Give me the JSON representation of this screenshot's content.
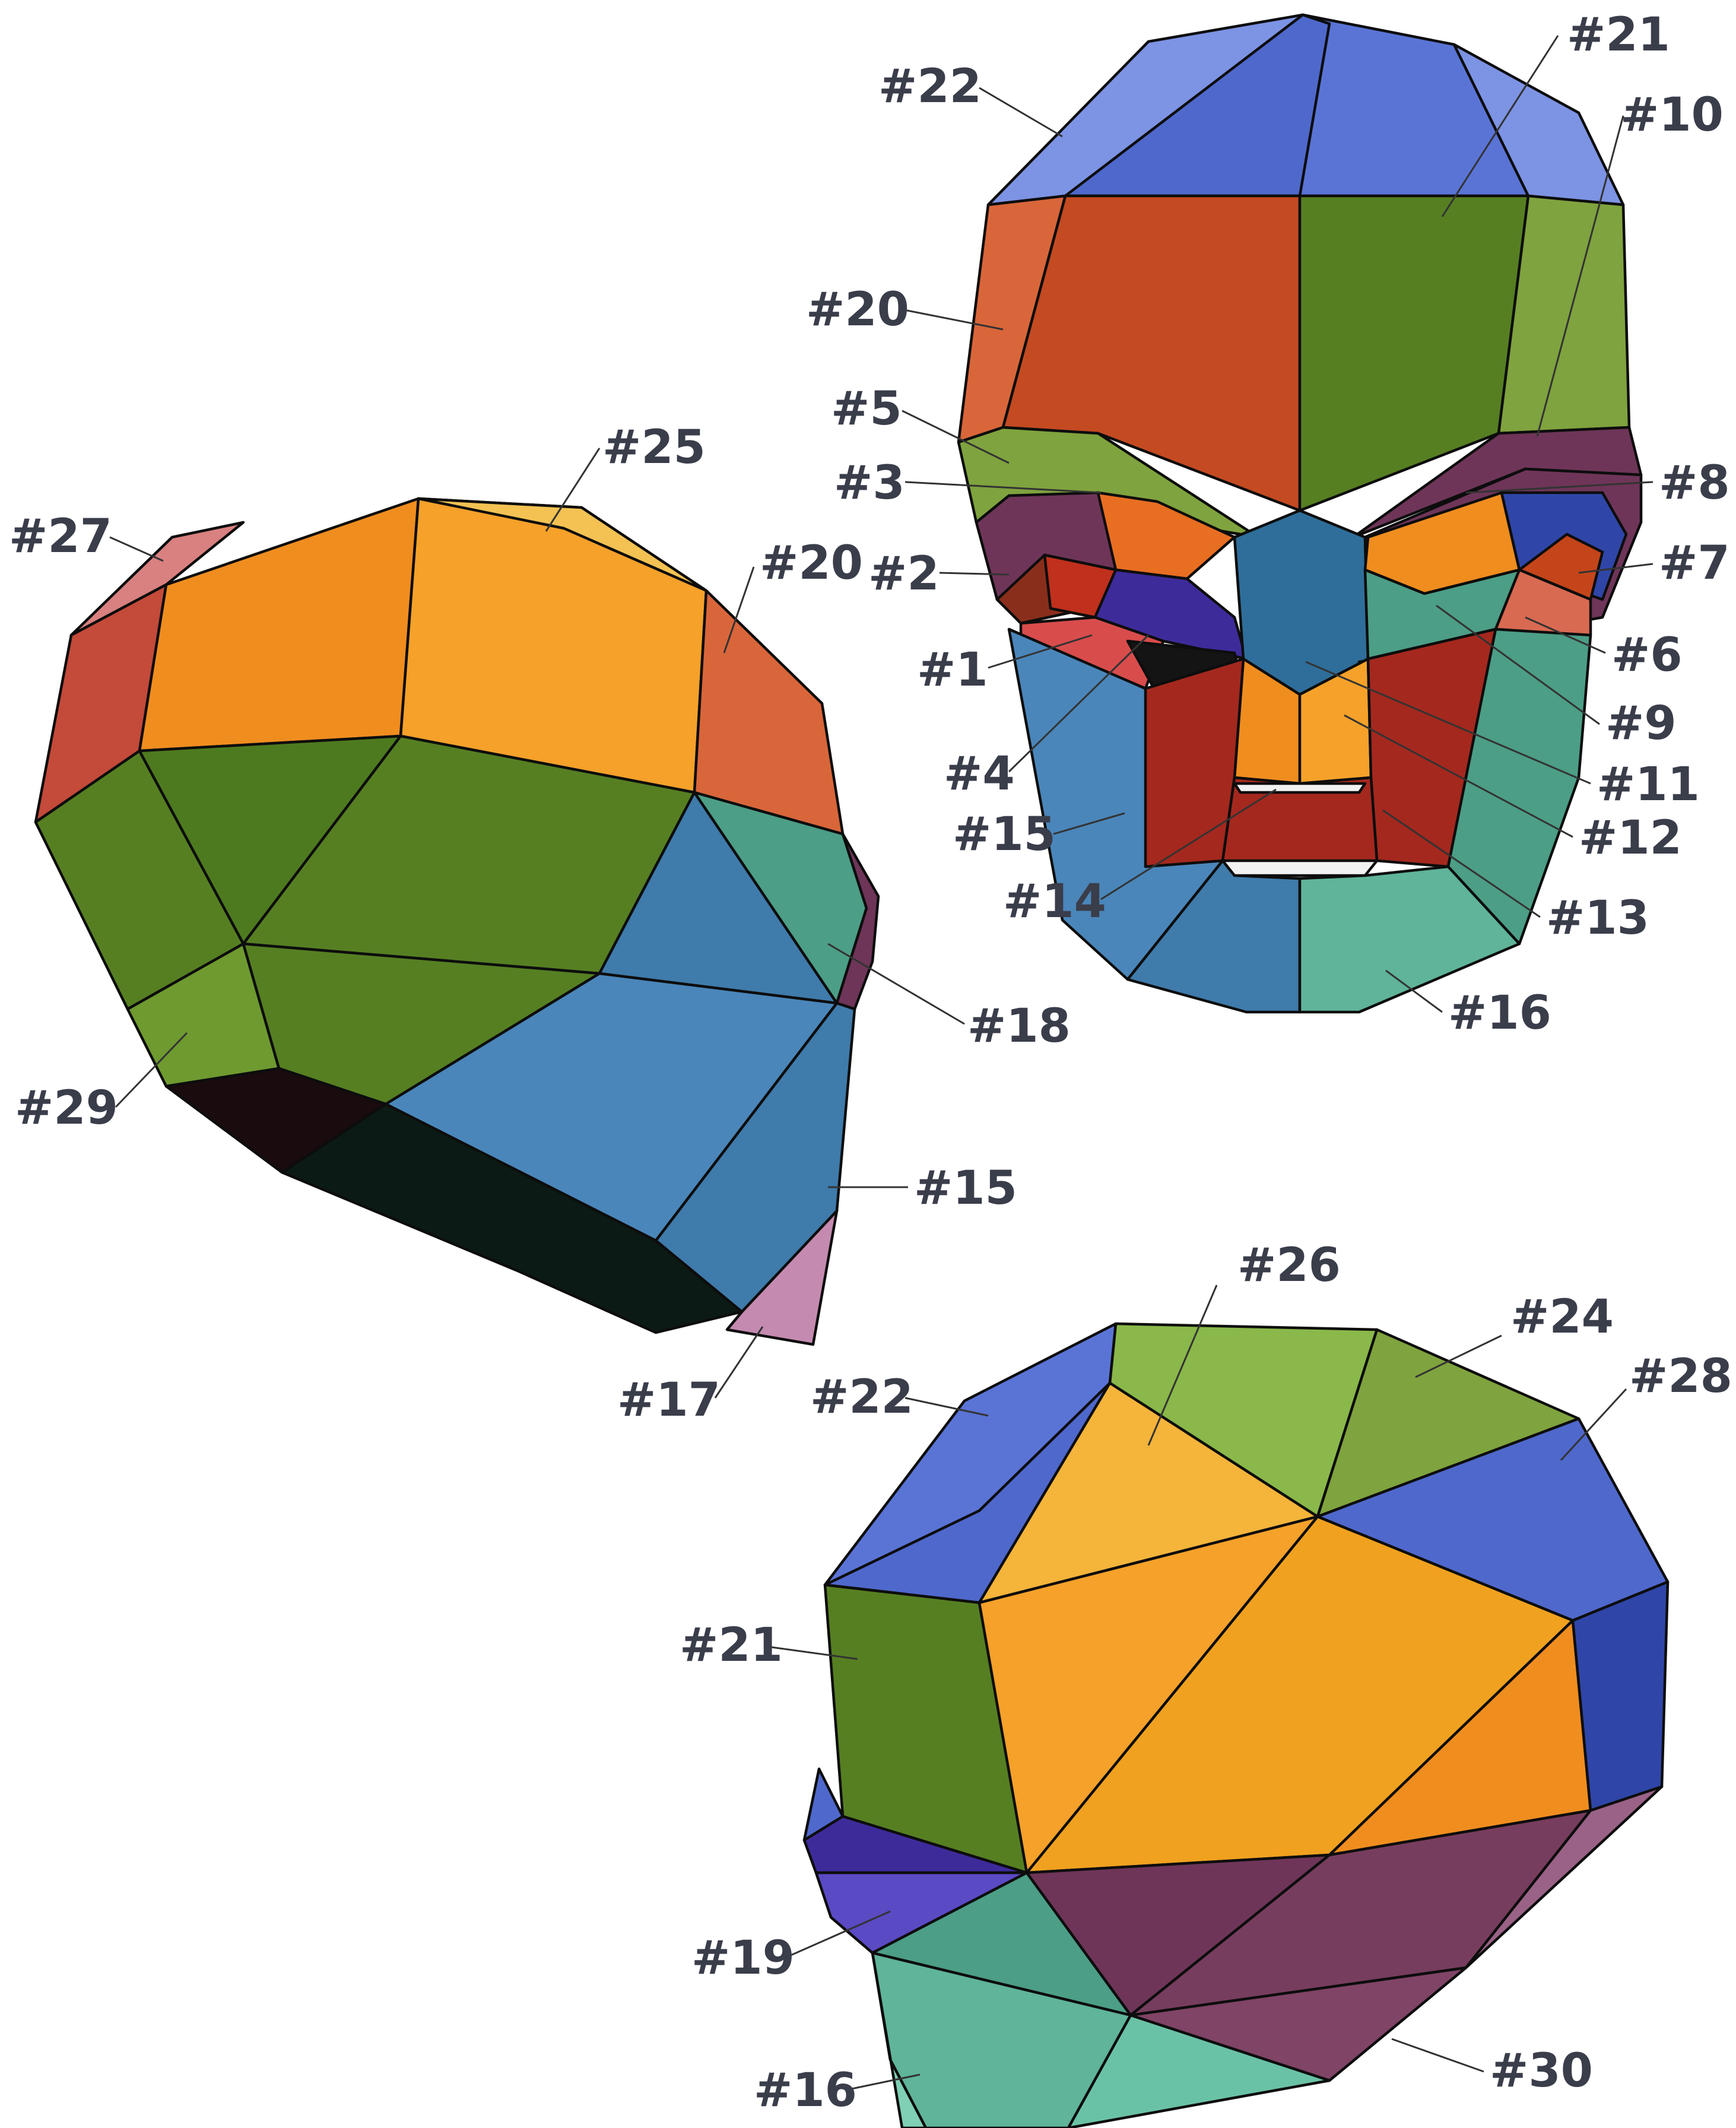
{
  "palette": {
    "blue": "#5a74d6",
    "blue_light": "#7d93e4",
    "blue_dark": "#2f46a8",
    "red_orange": "#c44a22",
    "orange_light": "#d9663a",
    "green": "#567f22",
    "green_light": "#7fa33e",
    "orange": "#f0a11f",
    "orange_light2": "#f5b43a",
    "steel_blue": "#3f7bab",
    "teal": "#4c9e86",
    "teal_light": "#5fb49a",
    "purple": "#6e3558",
    "indigo": "#3d2b9a",
    "crimson": "#a4281e",
    "dark": "#0b1a14",
    "salmon": "#d98080",
    "yellow": "#f3c253",
    "pink": "#c58ab0"
  },
  "labels": [
    {
      "id": "l22a",
      "text": "#22"
    },
    {
      "id": "l21a",
      "text": "#21"
    },
    {
      "id": "l10",
      "text": "#10"
    },
    {
      "id": "l20a",
      "text": "#20"
    },
    {
      "id": "l5",
      "text": "#5"
    },
    {
      "id": "l3",
      "text": "#3"
    },
    {
      "id": "l8",
      "text": "#8"
    },
    {
      "id": "l2",
      "text": "#2"
    },
    {
      "id": "l7",
      "text": "#7"
    },
    {
      "id": "l1",
      "text": "#1"
    },
    {
      "id": "l6",
      "text": "#6"
    },
    {
      "id": "l9",
      "text": "#9"
    },
    {
      "id": "l4",
      "text": "#4"
    },
    {
      "id": "l11",
      "text": "#11"
    },
    {
      "id": "l15a",
      "text": "#15"
    },
    {
      "id": "l12",
      "text": "#12"
    },
    {
      "id": "l14",
      "text": "#14"
    },
    {
      "id": "l13",
      "text": "#13"
    },
    {
      "id": "l16a",
      "text": "#16"
    },
    {
      "id": "l27",
      "text": "#27"
    },
    {
      "id": "l25",
      "text": "#25"
    },
    {
      "id": "l20b",
      "text": "#20"
    },
    {
      "id": "l18",
      "text": "#18"
    },
    {
      "id": "l29",
      "text": "#29"
    },
    {
      "id": "l15b",
      "text": "#15"
    },
    {
      "id": "l17",
      "text": "#17"
    },
    {
      "id": "l26",
      "text": "#26"
    },
    {
      "id": "l24",
      "text": "#24"
    },
    {
      "id": "l22b",
      "text": "#22"
    },
    {
      "id": "l28",
      "text": "#28"
    },
    {
      "id": "l21b",
      "text": "#21"
    },
    {
      "id": "l19",
      "text": "#19"
    },
    {
      "id": "l16b",
      "text": "#16"
    },
    {
      "id": "l30",
      "text": "#30"
    }
  ]
}
